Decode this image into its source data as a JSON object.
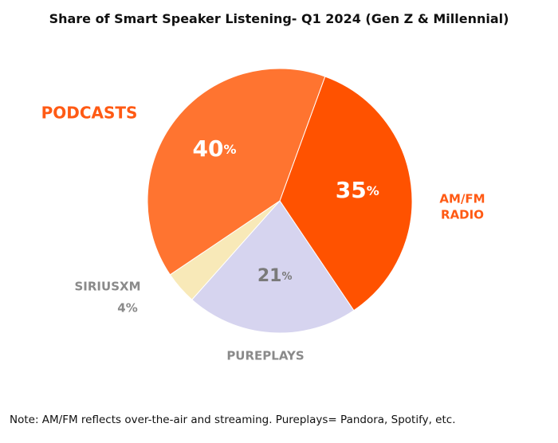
{
  "chart_data": {
    "type": "pie",
    "title": "Share of Smart Speaker Listening- Q1 2024 (Gen Z & Millennial)",
    "slices": [
      {
        "label": "PODCASTS",
        "value": 40,
        "value_text": "40",
        "color": "#ff7430",
        "label_color": "#ff5a14",
        "value_color": "#ffffff",
        "label_lines": [
          "PODCASTS"
        ]
      },
      {
        "label": "AM/FM RADIO",
        "value": 35,
        "value_text": "35",
        "color": "#ff5200",
        "label_color": "#ff5a14",
        "value_color": "#ffffff",
        "label_lines": [
          "AM/FM",
          "RADIO"
        ]
      },
      {
        "label": "PUREPLAYS",
        "value": 21,
        "value_text": "21",
        "color": "#d6d4ef",
        "label_color": "#8a8a8a",
        "value_color": "#7a7a7a",
        "label_lines": [
          "PUREPLAYS"
        ]
      },
      {
        "label": "SIRIUSXM",
        "value": 4,
        "value_text": "4%",
        "color": "#f8e9b8",
        "label_color": "#8a8a8a",
        "value_color": "#8a8a8a",
        "label_lines": [
          "SIRIUSXM"
        ]
      }
    ],
    "percent_sign": "%"
  },
  "footnote": "Note: AM/FM reflects over-the-air and streaming. Pureplays= Pandora, Spotify, etc."
}
